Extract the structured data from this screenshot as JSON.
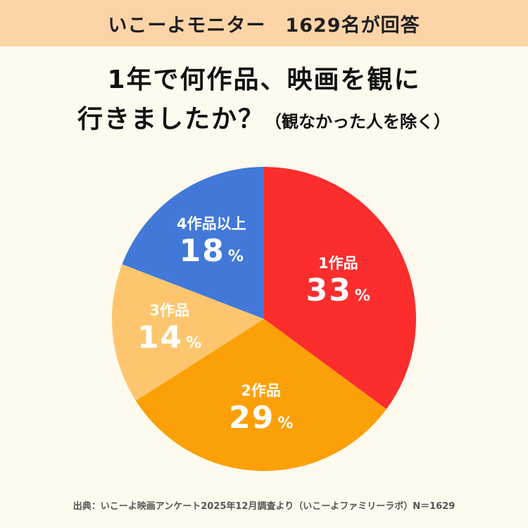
{
  "banner": {
    "text": "いこーよモニター　1629名が回答"
  },
  "title": {
    "line1": "1年で何作品、映画を観に",
    "line2": "行きましたか？",
    "note": "（観なかった人を除く）"
  },
  "chart_data": {
    "type": "pie",
    "unit": "%",
    "start_angle_deg": 0,
    "direction": "clockwise",
    "slices": [
      {
        "label": "1作品",
        "value": 33,
        "color": "#fb2d2d"
      },
      {
        "label": "2作品",
        "value": 29,
        "color": "#fca007"
      },
      {
        "label": "3作品",
        "value": 14,
        "color": "#fdc66e"
      },
      {
        "label": "4作品以上",
        "value": 18,
        "color": "#4279d8"
      }
    ]
  },
  "footer": {
    "source": "出典：いこーよ映画アンケート2025年12月調査より（いこーよファミリーラボ）N＝1629"
  }
}
